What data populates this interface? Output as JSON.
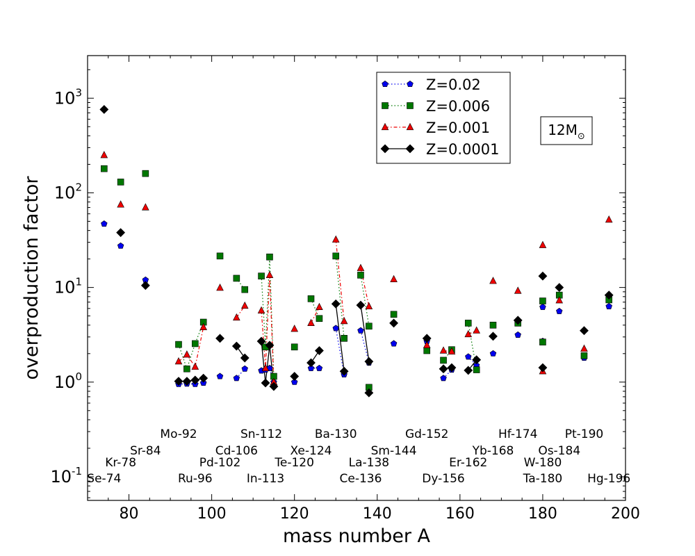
{
  "chart_data": {
    "type": "scatter",
    "title": "",
    "xlabel": "mass number A",
    "ylabel": "overproduction factor",
    "xlim": [
      70,
      200
    ],
    "ylim_log10": [
      -1.25,
      3.45
    ],
    "yscale": "log",
    "x_ticks": [
      80,
      100,
      120,
      140,
      160,
      180,
      200
    ],
    "y_ticks": [
      {
        "base": "10",
        "exp": "-1",
        "value": 0.1
      },
      {
        "base": "10",
        "exp": "0",
        "value": 1
      },
      {
        "base": "10",
        "exp": "1",
        "value": 10
      },
      {
        "base": "10",
        "exp": "2",
        "value": 100
      },
      {
        "base": "10",
        "exp": "3",
        "value": 1000
      }
    ],
    "annotation_box": {
      "main": "12M",
      "sub": "⊙"
    },
    "legend_position": "upper-center",
    "series": [
      {
        "name": "Z=0.02",
        "color": "#0000ee",
        "marker": "pentagon",
        "linestyle": "dotted",
        "points": [
          {
            "x": 74,
            "y": 47
          },
          {
            "x": 78,
            "y": 27.5
          },
          {
            "x": 84,
            "y": 12
          },
          {
            "x": 92,
            "y": 0.95
          },
          {
            "x": 94,
            "y": 0.96
          },
          {
            "x": 96,
            "y": 0.95
          },
          {
            "x": 98,
            "y": 0.98
          },
          {
            "x": 102,
            "y": 1.15
          },
          {
            "x": 106,
            "y": 1.1
          },
          {
            "x": 108,
            "y": 1.38
          },
          {
            "x": 112,
            "y": 1.32
          },
          {
            "x": 113,
            "y": 1.35
          },
          {
            "x": 114,
            "y": 1.4
          },
          {
            "x": 115,
            "y": 1.0
          },
          {
            "x": 120,
            "y": 1.0
          },
          {
            "x": 124,
            "y": 1.4
          },
          {
            "x": 126,
            "y": 1.4
          },
          {
            "x": 130,
            "y": 3.7
          },
          {
            "x": 132,
            "y": 1.2
          },
          {
            "x": 136,
            "y": 3.5
          },
          {
            "x": 138,
            "y": 1.6
          },
          {
            "x": 144,
            "y": 2.55
          },
          {
            "x": 152,
            "y": 2.7
          },
          {
            "x": 156,
            "y": 1.1
          },
          {
            "x": 158,
            "y": 1.35
          },
          {
            "x": 162,
            "y": 1.85
          },
          {
            "x": 164,
            "y": 1.5
          },
          {
            "x": 168,
            "y": 2.0
          },
          {
            "x": 174,
            "y": 3.15
          },
          {
            "x": 180,
            "y": 2.7
          },
          {
            "x": 180,
            "y": 6.2
          },
          {
            "x": 184,
            "y": 5.6
          },
          {
            "x": 190,
            "y": 1.8
          },
          {
            "x": 196,
            "y": 6.3
          }
        ],
        "line_segments": [
          [
            [
              92,
              0.95
            ],
            [
              94,
              0.96
            ],
            [
              96,
              0.95
            ],
            [
              98,
              0.98
            ]
          ],
          [
            [
              106,
              1.1
            ],
            [
              108,
              1.38
            ]
          ],
          [
            [
              112,
              1.32
            ],
            [
              113,
              1.35
            ],
            [
              114,
              1.4
            ],
            [
              115,
              1.0
            ]
          ],
          [
            [
              124,
              1.4
            ],
            [
              126,
              1.4
            ]
          ],
          [
            [
              130,
              3.7
            ],
            [
              132,
              1.2
            ]
          ],
          [
            [
              136,
              3.5
            ],
            [
              138,
              1.6
            ]
          ],
          [
            [
              156,
              1.1
            ],
            [
              158,
              1.35
            ]
          ],
          [
            [
              162,
              1.85
            ],
            [
              164,
              1.5
            ]
          ]
        ]
      },
      {
        "name": "Z=0.006",
        "color": "#007700",
        "marker": "square",
        "linestyle": "dotted",
        "points": [
          {
            "x": 74,
            "y": 180
          },
          {
            "x": 78,
            "y": 130
          },
          {
            "x": 84,
            "y": 160
          },
          {
            "x": 92,
            "y": 2.5
          },
          {
            "x": 94,
            "y": 1.38
          },
          {
            "x": 96,
            "y": 2.55
          },
          {
            "x": 98,
            "y": 4.3
          },
          {
            "x": 102,
            "y": 21.5
          },
          {
            "x": 106,
            "y": 12.5
          },
          {
            "x": 108,
            "y": 9.5
          },
          {
            "x": 112,
            "y": 13.2
          },
          {
            "x": 113,
            "y": 2.35
          },
          {
            "x": 114,
            "y": 21
          },
          {
            "x": 115,
            "y": 1.15
          },
          {
            "x": 120,
            "y": 2.35
          },
          {
            "x": 124,
            "y": 7.6
          },
          {
            "x": 126,
            "y": 4.7
          },
          {
            "x": 130,
            "y": 21.5
          },
          {
            "x": 132,
            "y": 2.9
          },
          {
            "x": 136,
            "y": 13.5
          },
          {
            "x": 138,
            "y": 3.9
          },
          {
            "x": 138,
            "y": 0.88
          },
          {
            "x": 144,
            "y": 5.2
          },
          {
            "x": 152,
            "y": 2.15
          },
          {
            "x": 156,
            "y": 1.7
          },
          {
            "x": 158,
            "y": 2.2
          },
          {
            "x": 162,
            "y": 4.2
          },
          {
            "x": 164,
            "y": 1.35
          },
          {
            "x": 168,
            "y": 4.0
          },
          {
            "x": 174,
            "y": 4.2
          },
          {
            "x": 180,
            "y": 7.2
          },
          {
            "x": 180,
            "y": 2.65
          },
          {
            "x": 184,
            "y": 8.3
          },
          {
            "x": 190,
            "y": 1.9
          },
          {
            "x": 196,
            "y": 7.4
          }
        ],
        "line_segments": [
          [
            [
              92,
              2.5
            ],
            [
              94,
              1.38
            ],
            [
              96,
              2.55
            ],
            [
              98,
              4.3
            ]
          ],
          [
            [
              106,
              12.5
            ],
            [
              108,
              9.5
            ]
          ],
          [
            [
              112,
              13.2
            ],
            [
              113,
              2.35
            ],
            [
              114,
              21
            ],
            [
              115,
              1.15
            ]
          ],
          [
            [
              124,
              7.6
            ],
            [
              126,
              4.7
            ]
          ],
          [
            [
              130,
              21.5
            ],
            [
              132,
              2.9
            ]
          ],
          [
            [
              136,
              13.5
            ],
            [
              138,
              3.9
            ]
          ],
          [
            [
              156,
              1.7
            ],
            [
              158,
              2.2
            ]
          ],
          [
            [
              162,
              4.2
            ],
            [
              164,
              1.35
            ]
          ]
        ]
      },
      {
        "name": "Z=0.001",
        "color": "#ee0000",
        "marker": "triangle",
        "linestyle": "dashdot",
        "points": [
          {
            "x": 74,
            "y": 250
          },
          {
            "x": 78,
            "y": 75
          },
          {
            "x": 84,
            "y": 70
          },
          {
            "x": 92,
            "y": 1.65
          },
          {
            "x": 94,
            "y": 1.95
          },
          {
            "x": 96,
            "y": 1.45
          },
          {
            "x": 98,
            "y": 3.8
          },
          {
            "x": 102,
            "y": 9.9
          },
          {
            "x": 106,
            "y": 4.8
          },
          {
            "x": 108,
            "y": 6.4
          },
          {
            "x": 112,
            "y": 5.7
          },
          {
            "x": 113,
            "y": 1.4
          },
          {
            "x": 114,
            "y": 13.5
          },
          {
            "x": 115,
            "y": 1.0
          },
          {
            "x": 120,
            "y": 3.65
          },
          {
            "x": 124,
            "y": 4.2
          },
          {
            "x": 126,
            "y": 6.2
          },
          {
            "x": 130,
            "y": 32
          },
          {
            "x": 132,
            "y": 4.4
          },
          {
            "x": 136,
            "y": 16
          },
          {
            "x": 138,
            "y": 6.3
          },
          {
            "x": 144,
            "y": 12.2
          },
          {
            "x": 152,
            "y": 2.45
          },
          {
            "x": 156,
            "y": 2.15
          },
          {
            "x": 158,
            "y": 2.1
          },
          {
            "x": 162,
            "y": 3.2
          },
          {
            "x": 164,
            "y": 3.5
          },
          {
            "x": 168,
            "y": 11.7
          },
          {
            "x": 174,
            "y": 9.2
          },
          {
            "x": 180,
            "y": 28
          },
          {
            "x": 180,
            "y": 1.3
          },
          {
            "x": 184,
            "y": 7.3
          },
          {
            "x": 190,
            "y": 2.25
          },
          {
            "x": 196,
            "y": 52
          }
        ],
        "line_segments": [
          [
            [
              92,
              1.65
            ],
            [
              94,
              1.95
            ],
            [
              96,
              1.45
            ],
            [
              98,
              3.8
            ]
          ],
          [
            [
              106,
              4.8
            ],
            [
              108,
              6.4
            ]
          ],
          [
            [
              112,
              5.7
            ],
            [
              113,
              1.4
            ],
            [
              114,
              13.5
            ],
            [
              115,
              1.0
            ]
          ],
          [
            [
              124,
              4.2
            ],
            [
              126,
              6.2
            ]
          ],
          [
            [
              130,
              32
            ],
            [
              132,
              4.4
            ]
          ],
          [
            [
              136,
              16
            ],
            [
              138,
              6.3
            ]
          ],
          [
            [
              156,
              2.15
            ],
            [
              158,
              2.1
            ]
          ],
          [
            [
              162,
              3.2
            ],
            [
              164,
              3.5
            ]
          ]
        ]
      },
      {
        "name": "Z=0.0001",
        "color": "#000000",
        "marker": "diamond",
        "linestyle": "solid",
        "points": [
          {
            "x": 74,
            "y": 760
          },
          {
            "x": 78,
            "y": 38
          },
          {
            "x": 84,
            "y": 10.5
          },
          {
            "x": 92,
            "y": 1.02
          },
          {
            "x": 94,
            "y": 1.02
          },
          {
            "x": 96,
            "y": 1.05
          },
          {
            "x": 98,
            "y": 1.1
          },
          {
            "x": 102,
            "y": 2.9
          },
          {
            "x": 106,
            "y": 2.4
          },
          {
            "x": 108,
            "y": 1.8
          },
          {
            "x": 112,
            "y": 2.7
          },
          {
            "x": 113,
            "y": 0.98
          },
          {
            "x": 114,
            "y": 2.45
          },
          {
            "x": 115,
            "y": 0.9
          },
          {
            "x": 120,
            "y": 1.15
          },
          {
            "x": 124,
            "y": 1.6
          },
          {
            "x": 126,
            "y": 2.15
          },
          {
            "x": 130,
            "y": 6.7
          },
          {
            "x": 132,
            "y": 1.3
          },
          {
            "x": 136,
            "y": 6.5
          },
          {
            "x": 138,
            "y": 1.65
          },
          {
            "x": 138,
            "y": 0.77
          },
          {
            "x": 144,
            "y": 4.2
          },
          {
            "x": 152,
            "y": 2.9
          },
          {
            "x": 156,
            "y": 1.38
          },
          {
            "x": 158,
            "y": 1.42
          },
          {
            "x": 162,
            "y": 1.33
          },
          {
            "x": 164,
            "y": 1.72
          },
          {
            "x": 168,
            "y": 3.05
          },
          {
            "x": 174,
            "y": 4.5
          },
          {
            "x": 180,
            "y": 13.2
          },
          {
            "x": 180,
            "y": 1.42
          },
          {
            "x": 184,
            "y": 10
          },
          {
            "x": 190,
            "y": 3.5
          },
          {
            "x": 196,
            "y": 8.3
          }
        ],
        "line_segments": [
          [
            [
              92,
              1.02
            ],
            [
              94,
              1.02
            ],
            [
              96,
              1.05
            ],
            [
              98,
              1.1
            ]
          ],
          [
            [
              106,
              2.4
            ],
            [
              108,
              1.8
            ]
          ],
          [
            [
              112,
              2.7
            ],
            [
              113,
              0.98
            ],
            [
              114,
              2.45
            ],
            [
              115,
              0.9
            ]
          ],
          [
            [
              124,
              1.6
            ],
            [
              126,
              2.15
            ]
          ],
          [
            [
              130,
              6.7
            ],
            [
              132,
              1.3
            ]
          ],
          [
            [
              136,
              6.5
            ],
            [
              138,
              1.65
            ]
          ],
          [
            [
              156,
              1.38
            ],
            [
              158,
              1.42
            ]
          ],
          [
            [
              162,
              1.33
            ],
            [
              164,
              1.72
            ]
          ]
        ]
      }
    ],
    "isotope_labels": [
      {
        "text": "Se-74",
        "x": 74,
        "row": 0
      },
      {
        "text": "Kr-78",
        "x": 78,
        "row": 1
      },
      {
        "text": "Sr-84",
        "x": 84,
        "row": 2
      },
      {
        "text": "Mo-92",
        "x": 92,
        "row": 3
      },
      {
        "text": "Ru-96",
        "x": 96,
        "row": 0
      },
      {
        "text": "Pd-102",
        "x": 102,
        "row": 1
      },
      {
        "text": "Cd-106",
        "x": 106,
        "row": 2
      },
      {
        "text": "Sn-112",
        "x": 112,
        "row": 3
      },
      {
        "text": "In-113",
        "x": 113,
        "row": 0
      },
      {
        "text": "Te-120",
        "x": 120,
        "row": 1
      },
      {
        "text": "Xe-124",
        "x": 124,
        "row": 2
      },
      {
        "text": "Ba-130",
        "x": 130,
        "row": 3
      },
      {
        "text": "Ce-136",
        "x": 136,
        "row": 0
      },
      {
        "text": "La-138",
        "x": 138,
        "row": 1
      },
      {
        "text": "Sm-144",
        "x": 144,
        "row": 2
      },
      {
        "text": "Gd-152",
        "x": 152,
        "row": 3
      },
      {
        "text": "Dy-156",
        "x": 156,
        "row": 0
      },
      {
        "text": "Er-162",
        "x": 162,
        "row": 1
      },
      {
        "text": "Yb-168",
        "x": 168,
        "row": 2
      },
      {
        "text": "Hf-174",
        "x": 174,
        "row": 3
      },
      {
        "text": "Ta-180",
        "x": 180,
        "row": 0
      },
      {
        "text": "W-180",
        "x": 180,
        "row": 1
      },
      {
        "text": "Os-184",
        "x": 184,
        "row": 2
      },
      {
        "text": "Pt-190",
        "x": 190,
        "row": 3
      },
      {
        "text": "Hg-196",
        "x": 196,
        "row": 0
      }
    ]
  }
}
